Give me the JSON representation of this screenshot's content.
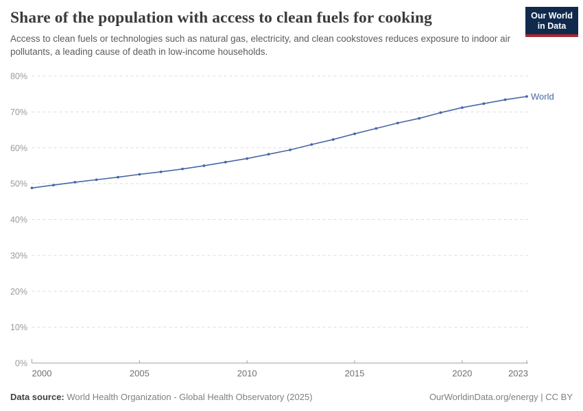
{
  "header": {
    "title": "Share of the population with access to clean fuels for cooking",
    "subtitle": "Access to clean fuels or technologies such as natural gas, electricity, and clean cookstoves reduces exposure to indoor air pollutants, a leading cause of death in low-income households."
  },
  "logo": {
    "line1": "Our World",
    "line2": "in Data"
  },
  "footer": {
    "datasource_label": "Data source:",
    "datasource_text": "World Health Organization - Global Health Observatory (2025)",
    "right_text": "OurWorldinData.org/energy | CC BY"
  },
  "colors": {
    "line": "#4666a5",
    "grid": "#dcdcdc",
    "axis": "#9f9f9f",
    "y_label": "#9a9a9a",
    "x_label": "#6f6f6f",
    "logo_navy": "#102a4e",
    "logo_red": "#a82633"
  },
  "chart_data": {
    "type": "line",
    "title": "Share of the population with access to clean fuels for cooking",
    "xlabel": "",
    "ylabel": "",
    "xlim": [
      2000,
      2023
    ],
    "ylim": [
      0,
      80
    ],
    "grid": "horizontal dashed",
    "legend": "end-of-line label",
    "x": [
      2000,
      2001,
      2002,
      2003,
      2004,
      2005,
      2006,
      2007,
      2008,
      2009,
      2010,
      2011,
      2012,
      2013,
      2014,
      2015,
      2016,
      2017,
      2018,
      2019,
      2020,
      2021,
      2022,
      2023
    ],
    "series": [
      {
        "name": "World",
        "values": [
          48.8,
          49.6,
          50.4,
          51.1,
          51.8,
          52.6,
          53.3,
          54.1,
          55.0,
          56.0,
          57.0,
          58.2,
          59.4,
          60.9,
          62.3,
          63.9,
          65.4,
          66.9,
          68.2,
          69.8,
          71.2,
          72.3,
          73.4,
          74.3
        ]
      }
    ],
    "y_ticks": [
      {
        "value": 0,
        "label": "0%"
      },
      {
        "value": 10,
        "label": "10%"
      },
      {
        "value": 20,
        "label": "20%"
      },
      {
        "value": 30,
        "label": "30%"
      },
      {
        "value": 40,
        "label": "40%"
      },
      {
        "value": 50,
        "label": "50%"
      },
      {
        "value": 60,
        "label": "60%"
      },
      {
        "value": 70,
        "label": "70%"
      },
      {
        "value": 80,
        "label": "80%"
      }
    ],
    "x_ticks": [
      {
        "value": 2000,
        "label": "2000"
      },
      {
        "value": 2005,
        "label": "2005"
      },
      {
        "value": 2010,
        "label": "2010"
      },
      {
        "value": 2015,
        "label": "2015"
      },
      {
        "value": 2020,
        "label": "2020"
      },
      {
        "value": 2023,
        "label": "2023"
      }
    ]
  }
}
